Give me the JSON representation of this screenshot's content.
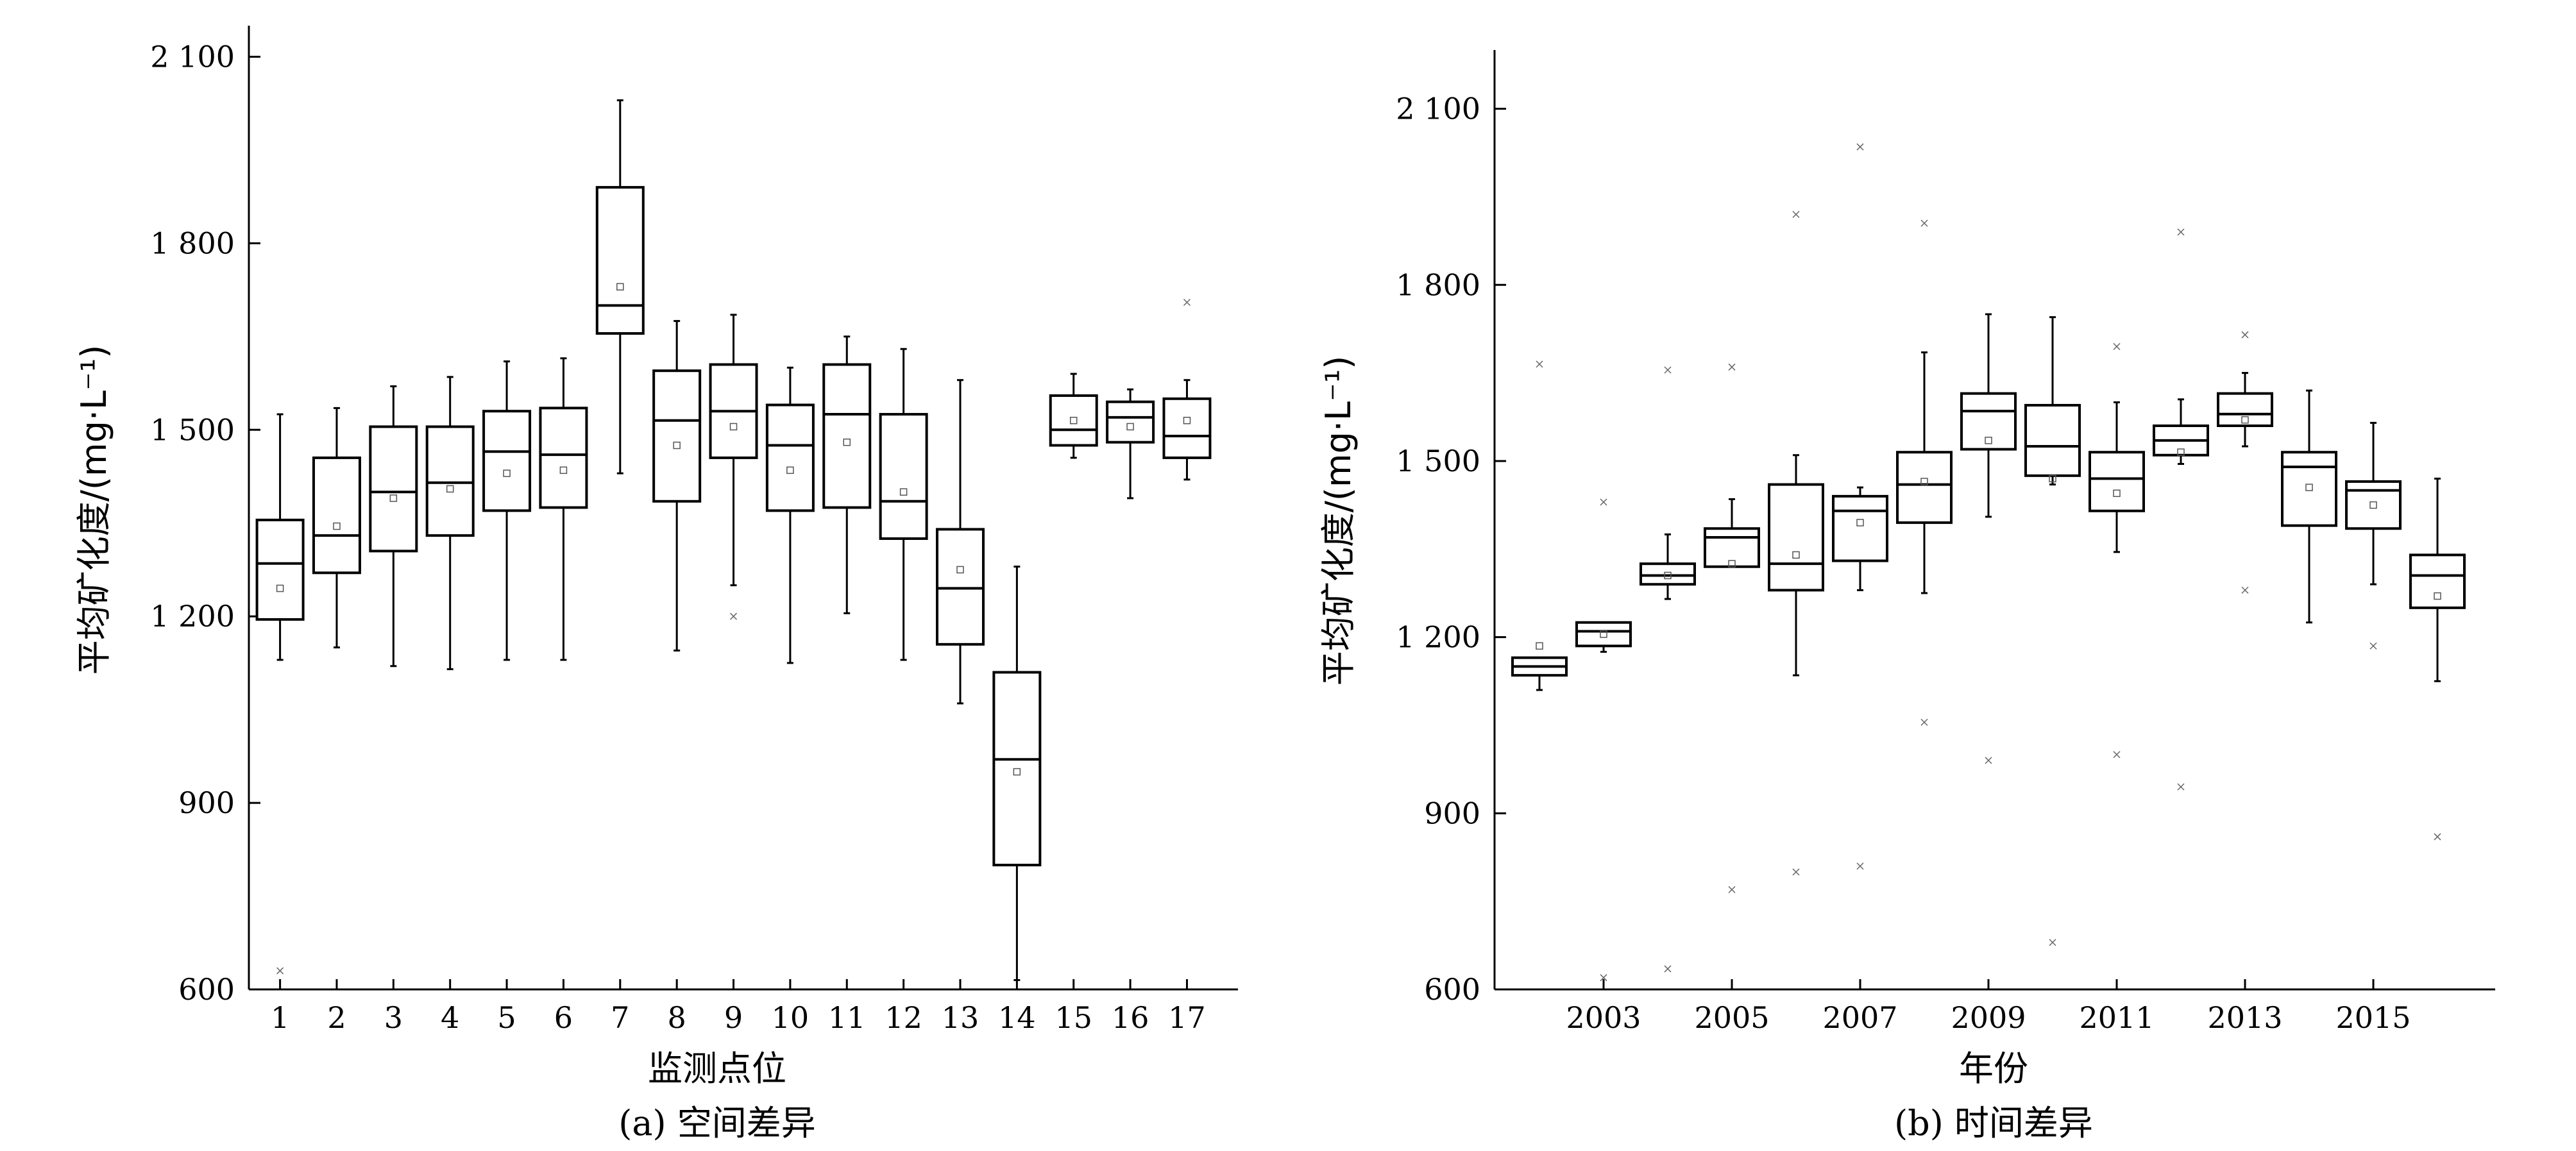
{
  "chart_data": [
    {
      "type": "box",
      "caption": "(a) 空间差异",
      "xlabel": "监测点位",
      "ylabel": "平均矿化度/(mg·L⁻¹)",
      "ylim": [
        600,
        2150
      ],
      "yticks": [
        600,
        900,
        1200,
        1500,
        1800,
        2100
      ],
      "ytick_labels": [
        "600",
        "900",
        "1 200",
        "1 500",
        "1 800",
        "2 100"
      ],
      "categories": [
        "1",
        "2",
        "3",
        "4",
        "5",
        "6",
        "7",
        "8",
        "9",
        "10",
        "11",
        "12",
        "13",
        "14",
        "15",
        "16",
        "17"
      ],
      "boxes": [
        {
          "cat": "1",
          "min": 1130,
          "q1": 1195,
          "median": 1285,
          "q3": 1355,
          "max": 1525,
          "mean": 1245,
          "outliers": [
            630
          ]
        },
        {
          "cat": "2",
          "min": 1150,
          "q1": 1270,
          "median": 1330,
          "q3": 1455,
          "max": 1535,
          "mean": 1345,
          "outliers": []
        },
        {
          "cat": "3",
          "min": 1120,
          "q1": 1305,
          "median": 1400,
          "q3": 1505,
          "max": 1570,
          "mean": 1390,
          "outliers": []
        },
        {
          "cat": "4",
          "min": 1115,
          "q1": 1330,
          "median": 1415,
          "q3": 1505,
          "max": 1585,
          "mean": 1405,
          "outliers": []
        },
        {
          "cat": "5",
          "min": 1130,
          "q1": 1370,
          "median": 1465,
          "q3": 1530,
          "max": 1610,
          "mean": 1430,
          "outliers": []
        },
        {
          "cat": "6",
          "min": 1130,
          "q1": 1375,
          "median": 1460,
          "q3": 1535,
          "max": 1615,
          "mean": 1435,
          "outliers": []
        },
        {
          "cat": "7",
          "min": 1430,
          "q1": 1655,
          "median": 1700,
          "q3": 1890,
          "max": 2030,
          "mean": 1730,
          "outliers": []
        },
        {
          "cat": "8",
          "min": 1145,
          "q1": 1385,
          "median": 1515,
          "q3": 1595,
          "max": 1675,
          "mean": 1475,
          "outliers": []
        },
        {
          "cat": "9",
          "min": 1250,
          "q1": 1455,
          "median": 1530,
          "q3": 1605,
          "max": 1685,
          "mean": 1505,
          "outliers": [
            1200
          ]
        },
        {
          "cat": "10",
          "min": 1125,
          "q1": 1370,
          "median": 1475,
          "q3": 1540,
          "max": 1600,
          "mean": 1435,
          "outliers": []
        },
        {
          "cat": "11",
          "min": 1205,
          "q1": 1375,
          "median": 1525,
          "q3": 1605,
          "max": 1650,
          "mean": 1480,
          "outliers": []
        },
        {
          "cat": "12",
          "min": 1130,
          "q1": 1325,
          "median": 1385,
          "q3": 1525,
          "max": 1630,
          "mean": 1400,
          "outliers": []
        },
        {
          "cat": "13",
          "min": 1060,
          "q1": 1155,
          "median": 1245,
          "q3": 1340,
          "max": 1580,
          "mean": 1275,
          "outliers": []
        },
        {
          "cat": "14",
          "min": 615,
          "q1": 800,
          "median": 970,
          "q3": 1110,
          "max": 1280,
          "mean": 950,
          "outliers": []
        },
        {
          "cat": "15",
          "min": 1455,
          "q1": 1475,
          "median": 1500,
          "q3": 1555,
          "max": 1590,
          "mean": 1515,
          "outliers": []
        },
        {
          "cat": "16",
          "min": 1390,
          "q1": 1480,
          "median": 1520,
          "q3": 1545,
          "max": 1565,
          "mean": 1505,
          "outliers": []
        },
        {
          "cat": "17",
          "min": 1420,
          "q1": 1455,
          "median": 1490,
          "q3": 1550,
          "max": 1580,
          "mean": 1515,
          "outliers": [
            1705
          ]
        }
      ]
    },
    {
      "type": "box",
      "caption": "(b) 时间差异",
      "xlabel": "年份",
      "ylabel": "平均矿化度/(mg·L⁻¹)",
      "ylim": [
        600,
        2200
      ],
      "yticks": [
        600,
        900,
        1200,
        1500,
        1800,
        2100
      ],
      "ytick_labels": [
        "600",
        "900",
        "1 200",
        "1 500",
        "1 800",
        "2 100"
      ],
      "xlim": [
        2001.3,
        2016.9
      ],
      "xticks": [
        "2003",
        "2005",
        "2007",
        "2009",
        "2011",
        "2013",
        "2015"
      ],
      "boxes": [
        {
          "cat": "2002",
          "min": 1110,
          "q1": 1135,
          "median": 1150,
          "q3": 1165,
          "max": 1165,
          "mean": 1185,
          "outliers": [
            1665
          ]
        },
        {
          "cat": "2003",
          "min": 1175,
          "q1": 1185,
          "median": 1210,
          "q3": 1225,
          "max": 1225,
          "mean": 1205,
          "outliers": [
            1430,
            620
          ]
        },
        {
          "cat": "2004",
          "min": 1265,
          "q1": 1290,
          "median": 1305,
          "q3": 1325,
          "max": 1375,
          "mean": 1305,
          "outliers": [
            1655,
            635
          ]
        },
        {
          "cat": "2005",
          "min": 1320,
          "q1": 1320,
          "median": 1370,
          "q3": 1385,
          "max": 1435,
          "mean": 1325,
          "outliers": [
            1660,
            770
          ]
        },
        {
          "cat": "2006",
          "min": 1135,
          "q1": 1280,
          "median": 1325,
          "q3": 1460,
          "max": 1510,
          "mean": 1340,
          "outliers": [
            1920,
            800
          ]
        },
        {
          "cat": "2007",
          "min": 1280,
          "q1": 1330,
          "median": 1415,
          "q3": 1440,
          "max": 1455,
          "mean": 1395,
          "outliers": [
            2035,
            810
          ]
        },
        {
          "cat": "2008",
          "min": 1275,
          "q1": 1395,
          "median": 1460,
          "q3": 1515,
          "max": 1685,
          "mean": 1465,
          "outliers": [
            1905,
            1055
          ]
        },
        {
          "cat": "2009",
          "min": 1405,
          "q1": 1520,
          "median": 1585,
          "q3": 1615,
          "max": 1750,
          "mean": 1535,
          "outliers": [
            990
          ]
        },
        {
          "cat": "2010",
          "min": 1460,
          "q1": 1475,
          "median": 1525,
          "q3": 1595,
          "max": 1745,
          "mean": 1470,
          "outliers": [
            680
          ]
        },
        {
          "cat": "2011",
          "min": 1345,
          "q1": 1415,
          "median": 1470,
          "q3": 1515,
          "max": 1600,
          "mean": 1445,
          "outliers": [
            1695,
            1000
          ]
        },
        {
          "cat": "2012",
          "min": 1495,
          "q1": 1510,
          "median": 1535,
          "q3": 1560,
          "max": 1605,
          "mean": 1515,
          "outliers": [
            1890,
            945
          ]
        },
        {
          "cat": "2013",
          "min": 1525,
          "q1": 1560,
          "median": 1580,
          "q3": 1615,
          "max": 1650,
          "mean": 1570,
          "outliers": [
            1715,
            1280
          ]
        },
        {
          "cat": "2014",
          "min": 1225,
          "q1": 1390,
          "median": 1490,
          "q3": 1515,
          "max": 1620,
          "mean": 1455,
          "outliers": []
        },
        {
          "cat": "2015",
          "min": 1290,
          "q1": 1385,
          "median": 1450,
          "q3": 1465,
          "max": 1565,
          "mean": 1425,
          "outliers": [
            1185
          ]
        },
        {
          "cat": "2016",
          "min": 1125,
          "q1": 1250,
          "median": 1305,
          "q3": 1340,
          "max": 1470,
          "mean": 1270,
          "outliers": [
            860
          ]
        }
      ]
    }
  ]
}
